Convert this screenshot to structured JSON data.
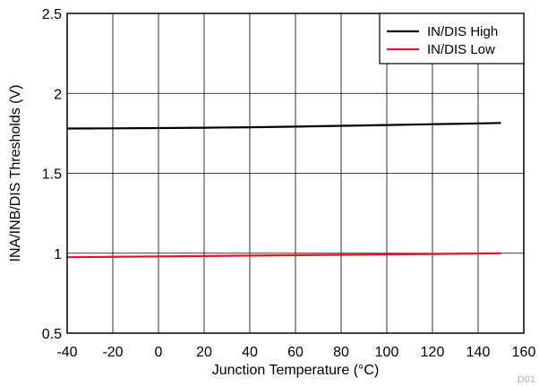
{
  "chart_data": {
    "type": "line",
    "title": "",
    "xlabel": "Junction Temperature (°C)",
    "ylabel": "INA/INB/DIS Thresholds (V)",
    "xlim": [
      -40,
      160
    ],
    "ylim": [
      0.5,
      2.5
    ],
    "xticks": [
      -40,
      -20,
      0,
      20,
      40,
      60,
      80,
      100,
      120,
      140,
      160
    ],
    "yticks": [
      0.5,
      1,
      1.5,
      2,
      2.5
    ],
    "ytick_labels": [
      "0.5",
      "1",
      "1.5",
      "2",
      "2.5"
    ],
    "grid": true,
    "legend_position": "top-right",
    "series": [
      {
        "name": "IN/DIS High",
        "color": "#000000",
        "x": [
          -40,
          -20,
          0,
          20,
          40,
          60,
          80,
          100,
          120,
          140,
          150
        ],
        "y": [
          1.78,
          1.781,
          1.783,
          1.785,
          1.788,
          1.792,
          1.797,
          1.802,
          1.807,
          1.812,
          1.815
        ]
      },
      {
        "name": "IN/DIS Low",
        "color": "#e8141e",
        "x": [
          -40,
          0,
          40,
          80,
          120,
          150
        ],
        "y": [
          0.975,
          0.98,
          0.985,
          0.99,
          0.995,
          1.0
        ]
      }
    ],
    "corner_label": "D01"
  }
}
